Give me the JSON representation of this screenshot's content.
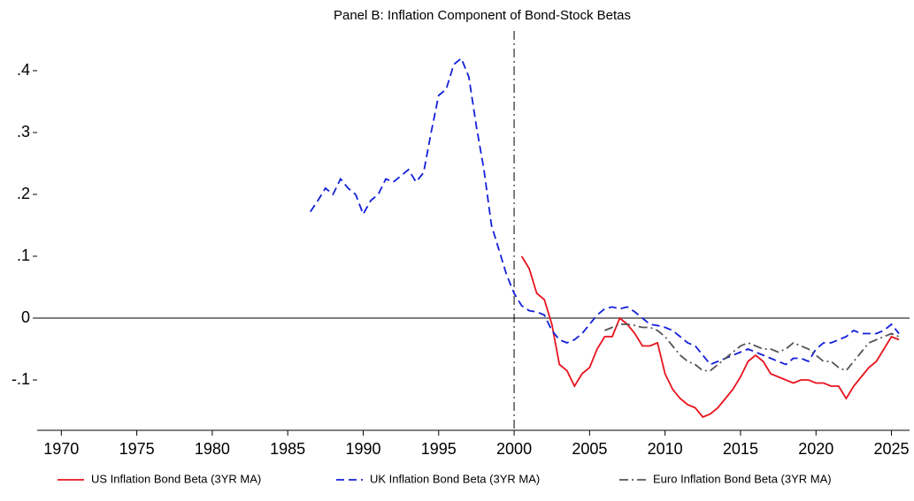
{
  "chart_data": {
    "type": "line",
    "title": "Panel B: Inflation Component of Bond-Stock Betas",
    "x": [
      1986.5,
      1987,
      1987.5,
      1988,
      1988.5,
      1989,
      1989.5,
      1990,
      1990.5,
      1991,
      1991.5,
      1992,
      1992.5,
      1993,
      1993.5,
      1994,
      1994.5,
      1995,
      1995.5,
      1996,
      1996.5,
      1997,
      1997.5,
      1998,
      1998.5,
      1999,
      1999.5,
      2000,
      2000.5,
      2001,
      2001.5,
      2002,
      2002.5,
      2003,
      2003.5,
      2004,
      2004.5,
      2005,
      2005.5,
      2006,
      2006.5,
      2007,
      2007.5,
      2008,
      2008.5,
      2009,
      2009.5,
      2010,
      2010.5,
      2011,
      2011.5,
      2012,
      2012.5,
      2013,
      2013.5,
      2014,
      2014.5,
      2015,
      2015.5,
      2016,
      2016.5,
      2017,
      2017.5,
      2018,
      2018.5,
      2019,
      2019.5,
      2020,
      2020.5,
      2021,
      2021.5,
      2022,
      2022.5,
      2023,
      2023.5,
      2024,
      2024.5,
      2025,
      2025.5
    ],
    "series": [
      {
        "name": "US Inflation Bond Beta (3YR MA)",
        "color": "#e8141e",
        "dash": "solid",
        "values": [
          null,
          null,
          null,
          null,
          null,
          null,
          null,
          null,
          null,
          null,
          null,
          null,
          null,
          null,
          null,
          null,
          null,
          null,
          null,
          null,
          null,
          null,
          null,
          null,
          null,
          null,
          null,
          null,
          0.1,
          0.08,
          0.04,
          0.03,
          -0.01,
          -0.075,
          -0.085,
          -0.11,
          -0.09,
          -0.08,
          -0.05,
          -0.03,
          -0.03,
          0.0,
          -0.01,
          -0.025,
          -0.045,
          -0.045,
          -0.04,
          -0.09,
          -0.115,
          -0.13,
          -0.14,
          -0.145,
          -0.16,
          -0.155,
          -0.145,
          -0.13,
          -0.115,
          -0.095,
          -0.07,
          -0.06,
          -0.07,
          -0.09,
          -0.095,
          -0.1,
          -0.105,
          -0.1,
          -0.1,
          -0.105,
          -0.105,
          -0.11,
          -0.11,
          -0.13,
          -0.11,
          -0.095,
          -0.08,
          -0.07,
          -0.05,
          -0.03,
          -0.035
        ]
      },
      {
        "name": "UK Inflation Bond Beta (3YR MA)",
        "color": "#1420d8",
        "dash": "dashed",
        "values": [
          0.172,
          0.19,
          0.21,
          0.2,
          0.225,
          0.21,
          0.2,
          0.168,
          0.19,
          0.2,
          0.225,
          0.22,
          0.23,
          0.24,
          0.22,
          0.235,
          0.3,
          0.36,
          0.37,
          0.41,
          0.42,
          0.39,
          0.31,
          0.24,
          0.15,
          0.11,
          0.07,
          0.04,
          0.02,
          0.012,
          0.01,
          0.005,
          -0.02,
          -0.035,
          -0.04,
          -0.035,
          -0.025,
          -0.01,
          0.005,
          0.015,
          0.018,
          0.015,
          0.018,
          0.01,
          0.0,
          -0.01,
          -0.012,
          -0.015,
          -0.02,
          -0.03,
          -0.04,
          -0.045,
          -0.06,
          -0.075,
          -0.07,
          -0.065,
          -0.06,
          -0.055,
          -0.05,
          -0.055,
          -0.06,
          -0.065,
          -0.07,
          -0.075,
          -0.065,
          -0.065,
          -0.07,
          -0.05,
          -0.04,
          -0.04,
          -0.035,
          -0.03,
          -0.02,
          -0.025,
          -0.025,
          -0.025,
          -0.02,
          -0.01,
          -0.025
        ]
      },
      {
        "name": "Euro Inflation Bond Beta (3YR MA)",
        "color": "#555555",
        "dash": "dashdot",
        "values": [
          null,
          null,
          null,
          null,
          null,
          null,
          null,
          null,
          null,
          null,
          null,
          null,
          null,
          null,
          null,
          null,
          null,
          null,
          null,
          null,
          null,
          null,
          null,
          null,
          null,
          null,
          null,
          null,
          null,
          null,
          null,
          null,
          null,
          null,
          null,
          null,
          null,
          null,
          null,
          -0.02,
          -0.015,
          -0.01,
          -0.01,
          -0.012,
          -0.015,
          -0.015,
          -0.02,
          -0.03,
          -0.045,
          -0.06,
          -0.07,
          -0.075,
          -0.085,
          -0.085,
          -0.075,
          -0.065,
          -0.055,
          -0.045,
          -0.04,
          -0.045,
          -0.05,
          -0.05,
          -0.055,
          -0.05,
          -0.04,
          -0.045,
          -0.05,
          -0.06,
          -0.07,
          -0.07,
          -0.08,
          -0.085,
          -0.07,
          -0.055,
          -0.04,
          -0.035,
          -0.03,
          -0.025,
          -0.03
        ]
      }
    ],
    "xlim": [
      1968.4,
      2026.2
    ],
    "xticks": [
      1970,
      1975,
      1980,
      1985,
      1990,
      1995,
      2000,
      2005,
      2010,
      2015,
      2020,
      2025
    ],
    "ylim": [
      -0.18,
      0.45
    ],
    "yticks": [
      {
        "value": -0.1,
        "label": "-.1"
      },
      0,
      {
        "value": 0.1,
        "label": ".1"
      },
      {
        "value": 0.2,
        "label": ".2"
      },
      {
        "value": 0.3,
        "label": ".3"
      },
      {
        "value": 0.4,
        "label": ".4"
      }
    ],
    "hline": 0,
    "vline": 2000,
    "legend": "bottom"
  }
}
